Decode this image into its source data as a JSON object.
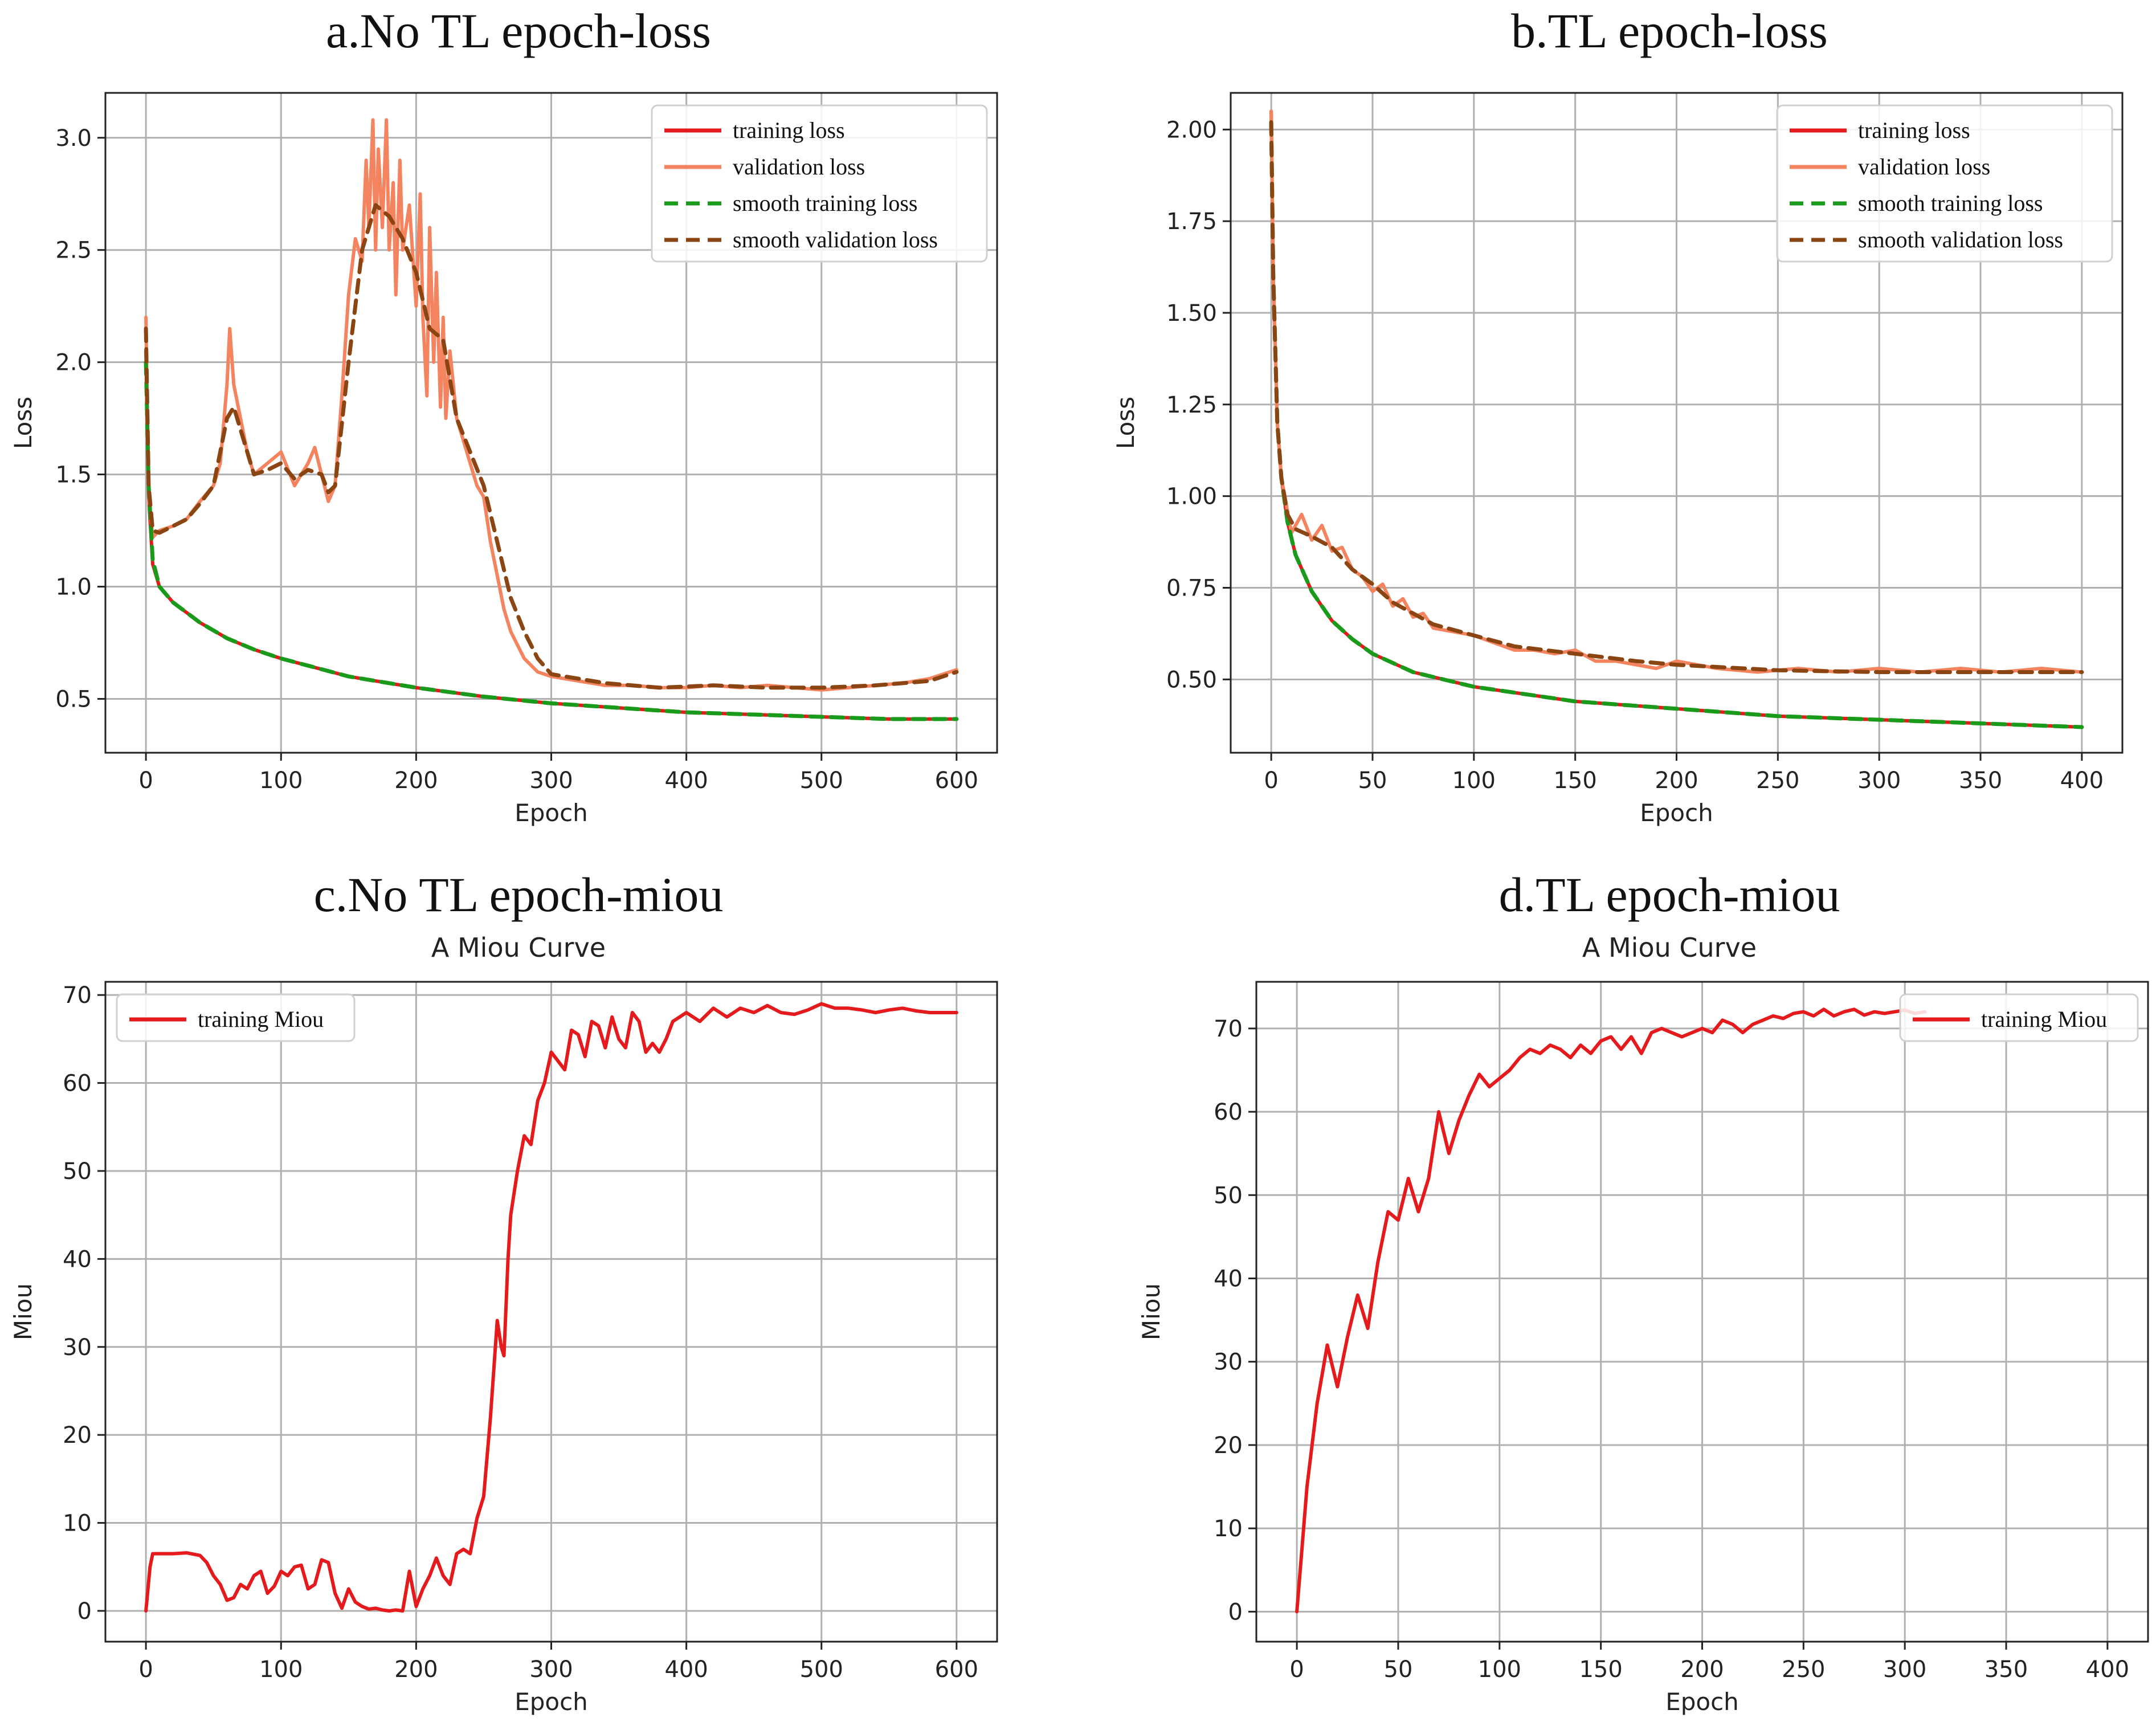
{
  "chart_data": [
    {
      "id": "a",
      "type": "line",
      "title": "a.No TL epoch-loss",
      "subtitle": "",
      "xlabel": "Epoch",
      "ylabel": "Loss",
      "xlim": [
        -30,
        630
      ],
      "ylim": [
        0.26,
        3.2
      ],
      "xticks": [
        0,
        100,
        200,
        300,
        400,
        500,
        600
      ],
      "yticks": [
        0.5,
        1.0,
        1.5,
        2.0,
        2.5,
        3.0
      ],
      "ytick_labels": [
        "0.5",
        "1.0",
        "1.5",
        "2.0",
        "2.5",
        "3.0"
      ],
      "grid": true,
      "legend": "top-right",
      "series": [
        {
          "name": "training loss",
          "color": "#e41a1c",
          "style": "solid",
          "x": [
            0,
            2,
            5,
            10,
            20,
            40,
            60,
            80,
            100,
            150,
            200,
            250,
            300,
            350,
            400,
            450,
            500,
            550,
            600
          ],
          "y": [
            2.05,
            1.4,
            1.1,
            1.0,
            0.93,
            0.84,
            0.77,
            0.72,
            0.68,
            0.6,
            0.55,
            0.51,
            0.48,
            0.46,
            0.44,
            0.43,
            0.42,
            0.41,
            0.41
          ]
        },
        {
          "name": "validation loss",
          "color": "#f4845f",
          "style": "solid",
          "x": [
            0,
            2,
            5,
            10,
            20,
            30,
            40,
            50,
            55,
            60,
            62,
            65,
            70,
            75,
            80,
            90,
            100,
            110,
            120,
            125,
            130,
            135,
            140,
            145,
            150,
            155,
            160,
            163,
            165,
            168,
            170,
            172,
            175,
            178,
            180,
            183,
            185,
            188,
            190,
            195,
            200,
            203,
            205,
            208,
            210,
            213,
            215,
            218,
            220,
            222,
            225,
            230,
            235,
            240,
            245,
            250,
            255,
            260,
            265,
            270,
            280,
            290,
            300,
            320,
            340,
            360,
            380,
            400,
            420,
            440,
            460,
            480,
            500,
            520,
            540,
            560,
            580,
            600
          ],
          "y": [
            2.2,
            1.4,
            1.22,
            1.25,
            1.27,
            1.3,
            1.38,
            1.45,
            1.55,
            1.9,
            2.15,
            1.9,
            1.75,
            1.6,
            1.5,
            1.55,
            1.6,
            1.45,
            1.55,
            1.62,
            1.5,
            1.38,
            1.45,
            1.85,
            2.3,
            2.55,
            2.45,
            2.9,
            2.6,
            3.08,
            2.5,
            2.95,
            2.6,
            3.08,
            2.5,
            2.8,
            2.3,
            2.9,
            2.5,
            2.7,
            2.25,
            2.75,
            2.2,
            1.85,
            2.6,
            2.0,
            2.4,
            1.8,
            2.2,
            1.75,
            2.05,
            1.75,
            1.65,
            1.55,
            1.45,
            1.4,
            1.2,
            1.05,
            0.9,
            0.8,
            0.68,
            0.62,
            0.6,
            0.58,
            0.56,
            0.56,
            0.55,
            0.55,
            0.56,
            0.55,
            0.56,
            0.55,
            0.54,
            0.55,
            0.56,
            0.57,
            0.59,
            0.63
          ]
        },
        {
          "name": "smooth training loss",
          "color": "#1a9a1a",
          "style": "dashed",
          "x": [
            0,
            2,
            5,
            10,
            20,
            40,
            60,
            80,
            100,
            150,
            200,
            250,
            300,
            350,
            400,
            450,
            500,
            550,
            600
          ],
          "y": [
            2.0,
            1.45,
            1.12,
            1.0,
            0.93,
            0.84,
            0.77,
            0.72,
            0.68,
            0.6,
            0.55,
            0.51,
            0.48,
            0.46,
            0.44,
            0.43,
            0.42,
            0.41,
            0.41
          ]
        },
        {
          "name": "smooth validation loss",
          "color": "#8b4513",
          "style": "dashed",
          "x": [
            0,
            2,
            5,
            10,
            20,
            30,
            40,
            50,
            60,
            65,
            70,
            80,
            90,
            100,
            110,
            120,
            130,
            135,
            140,
            150,
            160,
            170,
            180,
            190,
            200,
            210,
            220,
            230,
            240,
            250,
            260,
            270,
            280,
            290,
            300,
            340,
            380,
            420,
            460,
            500,
            540,
            580,
            600
          ],
          "y": [
            2.15,
            1.45,
            1.25,
            1.24,
            1.27,
            1.3,
            1.37,
            1.45,
            1.75,
            1.8,
            1.7,
            1.5,
            1.52,
            1.55,
            1.48,
            1.52,
            1.5,
            1.42,
            1.45,
            2.0,
            2.5,
            2.7,
            2.65,
            2.55,
            2.4,
            2.15,
            2.1,
            1.75,
            1.6,
            1.45,
            1.2,
            0.95,
            0.8,
            0.68,
            0.61,
            0.57,
            0.55,
            0.56,
            0.55,
            0.55,
            0.56,
            0.58,
            0.62
          ]
        }
      ]
    },
    {
      "id": "b",
      "type": "line",
      "title": "b.TL epoch-loss",
      "subtitle": "",
      "xlabel": "Epoch",
      "ylabel": "Loss",
      "xlim": [
        -20,
        420
      ],
      "ylim": [
        0.3,
        2.1
      ],
      "xticks": [
        0,
        50,
        100,
        150,
        200,
        250,
        300,
        350,
        400
      ],
      "yticks": [
        0.5,
        0.75,
        1.0,
        1.25,
        1.5,
        1.75,
        2.0
      ],
      "ytick_labels": [
        "0.50",
        "0.75",
        "1.00",
        "1.25",
        "1.50",
        "1.75",
        "2.00"
      ],
      "grid": true,
      "legend": "top-right",
      "series": [
        {
          "name": "training loss",
          "color": "#e41a1c",
          "style": "solid",
          "x": [
            0,
            1,
            3,
            5,
            8,
            12,
            20,
            30,
            40,
            50,
            70,
            100,
            150,
            200,
            250,
            300,
            350,
            400
          ],
          "y": [
            2.05,
            1.6,
            1.2,
            1.05,
            0.93,
            0.84,
            0.74,
            0.66,
            0.61,
            0.57,
            0.52,
            0.48,
            0.44,
            0.42,
            0.4,
            0.39,
            0.38,
            0.37
          ]
        },
        {
          "name": "validation loss",
          "color": "#f4845f",
          "style": "solid",
          "x": [
            0,
            1,
            3,
            5,
            8,
            10,
            15,
            20,
            25,
            30,
            35,
            40,
            45,
            50,
            55,
            60,
            65,
            70,
            75,
            80,
            90,
            100,
            110,
            120,
            130,
            140,
            150,
            160,
            170,
            180,
            190,
            200,
            220,
            240,
            260,
            280,
            300,
            320,
            340,
            360,
            380,
            400
          ],
          "y": [
            2.05,
            1.6,
            1.2,
            1.05,
            0.96,
            0.9,
            0.95,
            0.88,
            0.92,
            0.85,
            0.86,
            0.8,
            0.78,
            0.74,
            0.76,
            0.7,
            0.72,
            0.67,
            0.68,
            0.64,
            0.63,
            0.62,
            0.6,
            0.58,
            0.58,
            0.57,
            0.58,
            0.55,
            0.55,
            0.54,
            0.53,
            0.55,
            0.53,
            0.52,
            0.53,
            0.52,
            0.53,
            0.52,
            0.53,
            0.52,
            0.53,
            0.52
          ]
        },
        {
          "name": "smooth training loss",
          "color": "#1a9a1a",
          "style": "dashed",
          "x": [
            0,
            1,
            3,
            5,
            8,
            12,
            20,
            30,
            40,
            50,
            70,
            100,
            150,
            200,
            250,
            300,
            350,
            400
          ],
          "y": [
            2.02,
            1.6,
            1.2,
            1.05,
            0.93,
            0.84,
            0.74,
            0.66,
            0.61,
            0.57,
            0.52,
            0.48,
            0.44,
            0.42,
            0.4,
            0.39,
            0.38,
            0.37
          ]
        },
        {
          "name": "smooth validation loss",
          "color": "#8b4513",
          "style": "dashed",
          "x": [
            0,
            1,
            3,
            5,
            8,
            12,
            20,
            30,
            40,
            50,
            60,
            70,
            80,
            100,
            120,
            150,
            180,
            200,
            250,
            300,
            350,
            400
          ],
          "y": [
            2.02,
            1.6,
            1.2,
            1.05,
            0.95,
            0.91,
            0.89,
            0.86,
            0.8,
            0.76,
            0.71,
            0.68,
            0.65,
            0.62,
            0.59,
            0.57,
            0.55,
            0.54,
            0.525,
            0.52,
            0.52,
            0.52
          ]
        }
      ]
    },
    {
      "id": "c",
      "type": "line",
      "title": "c.No TL epoch-miou",
      "subtitle": "A Miou Curve",
      "xlabel": "Epoch",
      "ylabel": "Miou",
      "xlim": [
        -30,
        630
      ],
      "ylim": [
        -3.5,
        71.5
      ],
      "xticks": [
        0,
        100,
        200,
        300,
        400,
        500,
        600
      ],
      "yticks": [
        0,
        10,
        20,
        30,
        40,
        50,
        60,
        70
      ],
      "ytick_labels": [
        "0",
        "10",
        "20",
        "30",
        "40",
        "50",
        "60",
        "70"
      ],
      "grid": true,
      "legend": "top-left",
      "series": [
        {
          "name": "training Miou",
          "color": "#e41a1c",
          "style": "solid",
          "x": [
            0,
            3,
            5,
            10,
            20,
            30,
            40,
            45,
            50,
            55,
            60,
            65,
            70,
            75,
            80,
            85,
            90,
            95,
            100,
            105,
            110,
            115,
            120,
            125,
            130,
            135,
            140,
            145,
            150,
            155,
            160,
            165,
            170,
            175,
            180,
            185,
            190,
            195,
            200,
            205,
            210,
            215,
            220,
            225,
            230,
            235,
            240,
            245,
            250,
            255,
            260,
            263,
            265,
            268,
            270,
            275,
            280,
            285,
            290,
            295,
            300,
            305,
            310,
            315,
            320,
            325,
            330,
            335,
            340,
            345,
            350,
            355,
            360,
            365,
            370,
            375,
            380,
            385,
            390,
            395,
            400,
            410,
            420,
            430,
            440,
            450,
            460,
            470,
            480,
            490,
            500,
            510,
            520,
            530,
            540,
            550,
            560,
            570,
            580,
            590,
            600
          ],
          "y": [
            0,
            5,
            6.5,
            6.5,
            6.5,
            6.6,
            6.3,
            5.5,
            4.0,
            3.0,
            1.2,
            1.5,
            3.0,
            2.5,
            4.0,
            4.5,
            2.0,
            2.8,
            4.5,
            4.0,
            5.0,
            5.2,
            2.5,
            3.0,
            5.8,
            5.5,
            2.0,
            0.3,
            2.5,
            1.0,
            0.5,
            0.2,
            0.3,
            0.1,
            0.0,
            0.1,
            0.0,
            4.5,
            0.5,
            2.5,
            4.0,
            6.0,
            4.0,
            3.0,
            6.5,
            7.0,
            6.5,
            10.5,
            13.0,
            22.0,
            33.0,
            30.0,
            29.0,
            40.0,
            45.0,
            50.0,
            54.0,
            53.0,
            58.0,
            60.0,
            63.5,
            62.5,
            61.5,
            66.0,
            65.5,
            63.0,
            67.0,
            66.5,
            64.0,
            67.5,
            65.0,
            64.0,
            68.0,
            67.0,
            63.5,
            64.5,
            63.5,
            65.0,
            67.0,
            67.5,
            68.0,
            67.0,
            68.5,
            67.5,
            68.5,
            68.0,
            68.8,
            68.0,
            67.8,
            68.3,
            69.0,
            68.5,
            68.5,
            68.3,
            68.0,
            68.3,
            68.5,
            68.2,
            68.0,
            68.0,
            68.0
          ]
        }
      ]
    },
    {
      "id": "d",
      "type": "line",
      "title": "d.TL epoch-miou",
      "subtitle": "A Miou Curve",
      "xlabel": "Epoch",
      "ylabel": "Miou",
      "xlim": [
        -20,
        420
      ],
      "ylim": [
        -3.6,
        75.6
      ],
      "xticks": [
        0,
        50,
        100,
        150,
        200,
        250,
        300,
        350,
        400
      ],
      "yticks": [
        0,
        10,
        20,
        30,
        40,
        50,
        60,
        70
      ],
      "ytick_labels": [
        "0",
        "10",
        "20",
        "30",
        "40",
        "50",
        "60",
        "70"
      ],
      "grid": true,
      "legend": "top-right",
      "series": [
        {
          "name": "training Miou",
          "color": "#e41a1c",
          "style": "solid",
          "x": [
            0,
            5,
            10,
            15,
            20,
            25,
            30,
            35,
            40,
            45,
            50,
            55,
            60,
            65,
            70,
            75,
            80,
            85,
            90,
            95,
            100,
            105,
            110,
            115,
            120,
            125,
            130,
            135,
            140,
            145,
            150,
            155,
            160,
            165,
            170,
            175,
            180,
            185,
            190,
            195,
            200,
            205,
            210,
            215,
            220,
            225,
            230,
            235,
            240,
            245,
            250,
            255,
            260,
            265,
            270,
            275,
            280,
            285,
            290,
            295,
            300,
            305,
            310
          ],
          "y": [
            0,
            15,
            25,
            32,
            27,
            33,
            38,
            34,
            42,
            48,
            47,
            52,
            48,
            52,
            60,
            55,
            59,
            62,
            64.5,
            63,
            64,
            65,
            66.5,
            67.5,
            67,
            68,
            67.5,
            66.5,
            68,
            67,
            68.5,
            69,
            67.5,
            69,
            67,
            69.5,
            70,
            69.5,
            69,
            69.5,
            70,
            69.5,
            71,
            70.5,
            69.5,
            70.5,
            71,
            71.5,
            71.2,
            71.8,
            72,
            71.5,
            72.3,
            71.5,
            72,
            72.3,
            71.6,
            72,
            71.8,
            72,
            72.2,
            71.8,
            72
          ]
        }
      ]
    }
  ]
}
